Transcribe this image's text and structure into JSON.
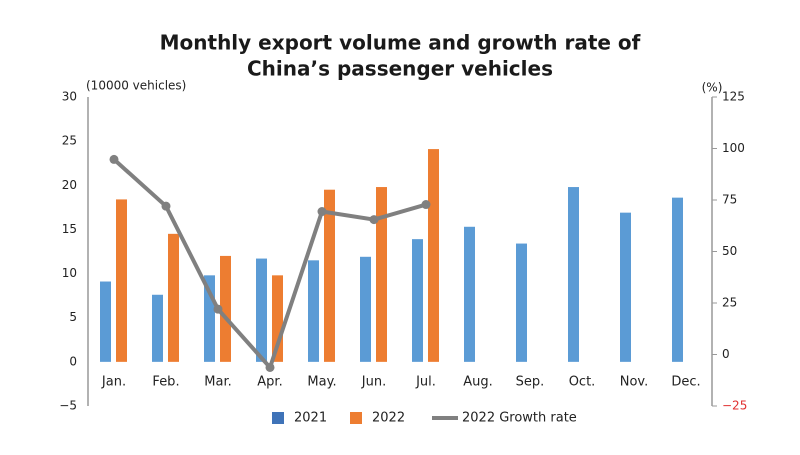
{
  "chart_data": {
    "type": "bar-line",
    "title": [
      "Monthly export volume and growth rate of",
      "China’s passenger vehicles"
    ],
    "y_label": "(10000 vehicles)",
    "y2_label": "(%)",
    "categories": [
      "Jan.",
      "Feb.",
      "Mar.",
      "Apr.",
      "May.",
      "Jun.",
      "Jul.",
      "Aug.",
      "Sep.",
      "Oct.",
      "Nov.",
      "Dec."
    ],
    "series": [
      {
        "name": "2021",
        "type": "bar",
        "color": "#5b9bd5",
        "legend_color": "#3f73b8",
        "values": [
          9.1,
          7.6,
          9.8,
          11.7,
          11.5,
          11.9,
          13.9,
          15.3,
          13.4,
          19.8,
          16.9,
          18.6
        ]
      },
      {
        "name": "2022",
        "type": "bar",
        "color": "#ed7d31",
        "legend_color": "#ed7d31",
        "values": [
          18.4,
          14.5,
          12.0,
          9.8,
          19.5,
          19.8,
          24.1,
          null,
          null,
          null,
          null,
          null
        ]
      },
      {
        "name": "2022 Growth rate",
        "type": "line",
        "axis": "y2",
        "color": "#808080",
        "legend_color": "#808080",
        "values": [
          94.7,
          72,
          22,
          -6.3,
          69.4,
          65.5,
          72.8,
          null,
          null,
          null,
          null,
          null
        ]
      }
    ],
    "ylim": [
      -5,
      30
    ],
    "yticks": [
      {
        "value": -5,
        "label": "−5"
      },
      0,
      5,
      10,
      15,
      20,
      25,
      30
    ],
    "y2lim": [
      -25,
      125
    ],
    "y2ticks": [
      {
        "value": -25,
        "label": "−25"
      },
      0,
      25,
      50,
      75,
      100,
      125
    ],
    "legend": "bottom"
  }
}
